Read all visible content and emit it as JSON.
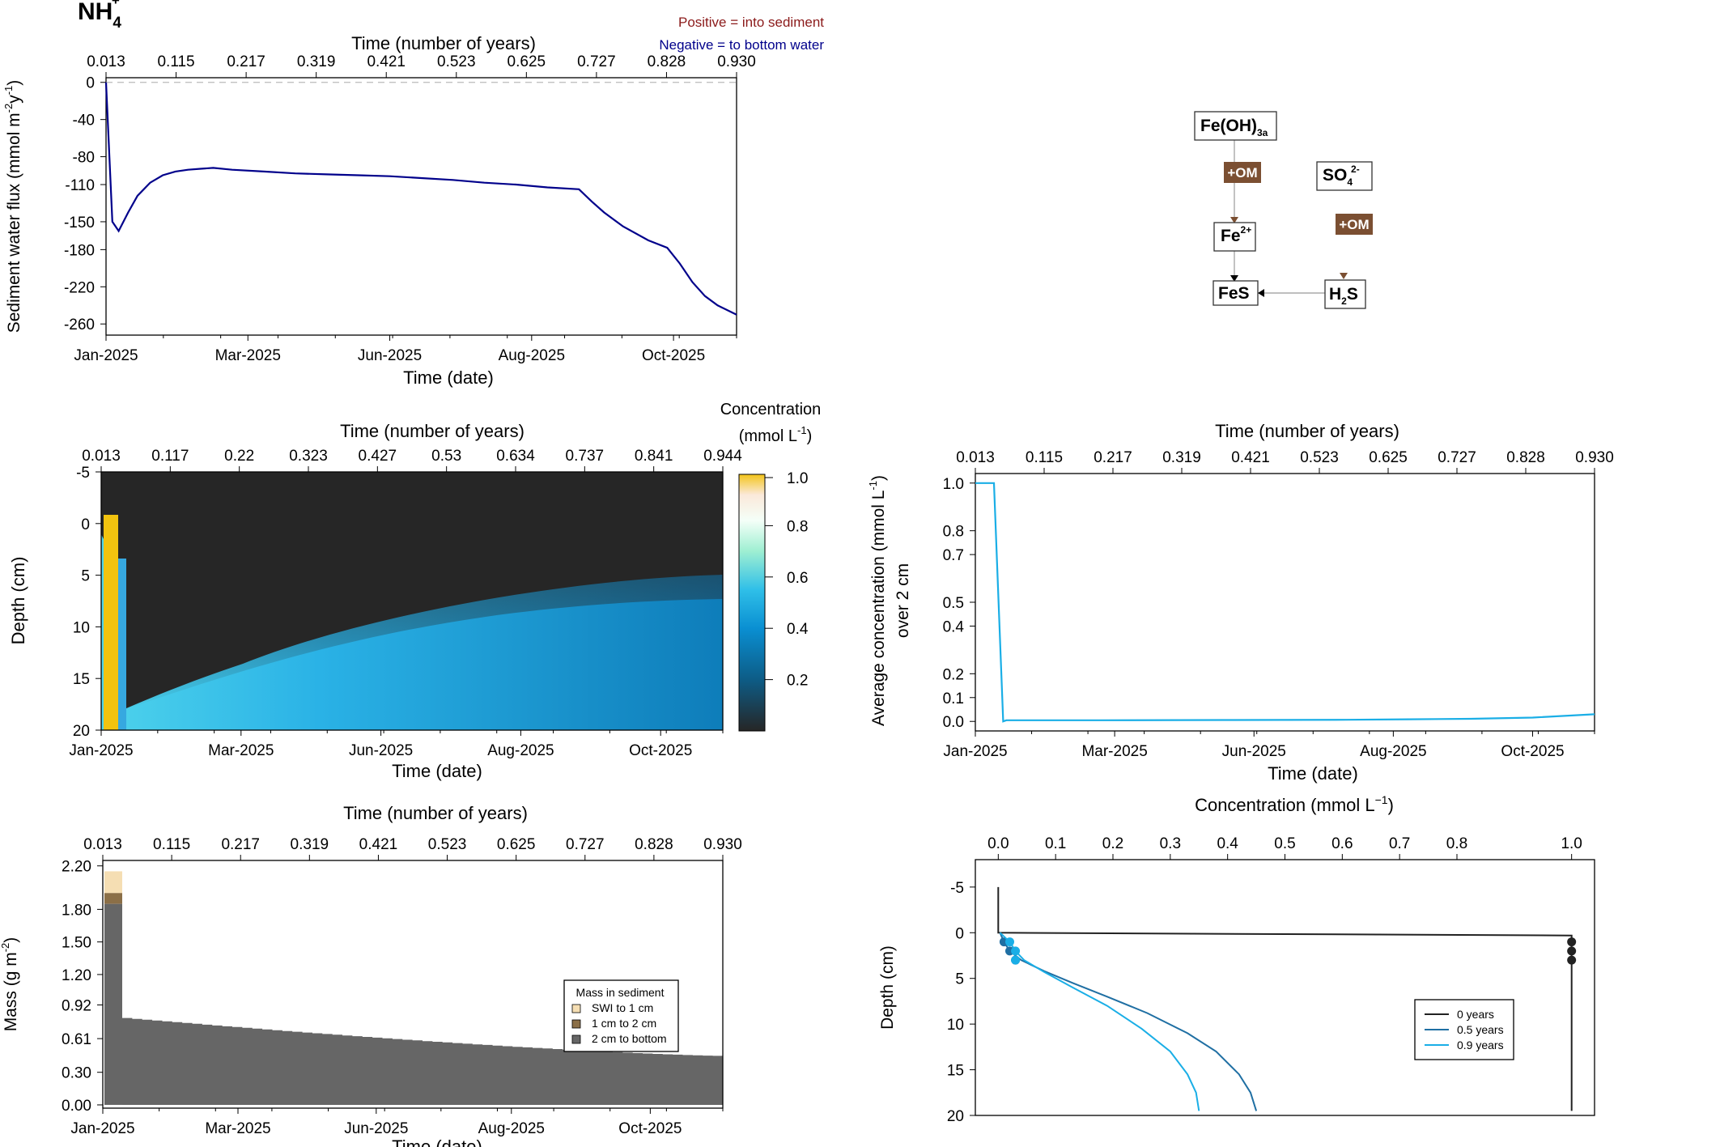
{
  "page": {
    "title": "NH",
    "title_sub": "4",
    "title_sup": "+"
  },
  "flux_legend": {
    "positive": "Positive = into sediment",
    "negative": "Negative = to bottom water",
    "positive_color": "#8B1A1A",
    "negative_color": "#00008B"
  },
  "colors": {
    "flux_line": "#00008B",
    "avg_line": "#1AAEE6",
    "profile_0": "#222222",
    "profile_05": "#1F6FA3",
    "profile_09": "#1AAEE6",
    "mass_swi": "#F5DEB3",
    "mass_1_2": "#8B6F47",
    "mass_2_bottom": "#666666",
    "om_box": "#7B4F32",
    "gold_strip": "#F2C30F"
  },
  "chart_data": [
    {
      "id": "flux",
      "type": "line",
      "top_axis_title": "Time (number of years)",
      "top_ticks": [
        "0.013",
        "0.115",
        "0.217",
        "0.319",
        "0.421",
        "0.523",
        "0.625",
        "0.727",
        "0.828",
        "0.930"
      ],
      "xlabel": "Time (date)",
      "x_ticks": [
        "Jan-2025",
        "Mar-2025",
        "Jun-2025",
        "Aug-2025",
        "Oct-2025"
      ],
      "ylabel": "Sediment water flux (mmol m",
      "ylabel_sup1": "-2",
      "ylabel_mid": "y",
      "ylabel_sup2": "-1",
      "ylabel_end": ")",
      "y_ticks": [
        "0",
        "-40",
        "-80",
        "-110",
        "-150",
        "-180",
        "-220",
        "-260"
      ],
      "y_tick_values": [
        0,
        -40,
        -80,
        -110,
        -150,
        -180,
        -220,
        -260
      ],
      "ylim": [
        -272,
        5
      ],
      "xlim": [
        0.0,
        1.0
      ],
      "x": [
        0.0,
        0.01,
        0.02,
        0.035,
        0.05,
        0.07,
        0.09,
        0.11,
        0.13,
        0.15,
        0.17,
        0.2,
        0.25,
        0.3,
        0.35,
        0.4,
        0.45,
        0.5,
        0.55,
        0.6,
        0.65,
        0.7,
        0.75,
        0.77,
        0.79,
        0.82,
        0.86,
        0.89,
        0.91,
        0.93,
        0.95,
        0.97,
        1.0
      ],
      "y": [
        0,
        -150,
        -160,
        -140,
        -122,
        -108,
        -100,
        -96,
        -94,
        -93,
        -92,
        -94,
        -96,
        -98,
        -99,
        -100,
        -101,
        -103,
        -105,
        -108,
        -110,
        -113,
        -115,
        -128,
        -140,
        -155,
        -170,
        -178,
        -195,
        -215,
        -230,
        -240,
        -250
      ],
      "reference_line": 0
    },
    {
      "id": "heatmap",
      "type": "heatmap",
      "top_axis_title": "Time (number of years)",
      "top_ticks": [
        "0.013",
        "0.117",
        "0.22",
        "0.323",
        "0.427",
        "0.53",
        "0.634",
        "0.737",
        "0.841",
        "0.944"
      ],
      "xlabel": "Time (date)",
      "x_ticks": [
        "Jan-2025",
        "Mar-2025",
        "Jun-2025",
        "Aug-2025",
        "Oct-2025"
      ],
      "ylabel": "Depth (cm)",
      "y_ticks": [
        "-5",
        "0",
        "5",
        "10",
        "15",
        "20"
      ],
      "y_tick_values": [
        -5,
        0,
        5,
        10,
        15,
        20
      ],
      "ylim": [
        -5,
        20
      ],
      "colorbar_title": "Concentration",
      "colorbar_unit_pre": "(mmol L",
      "colorbar_unit_sup": "-1",
      "colorbar_unit_post": ")",
      "colorbar_ticks": [
        "0.2",
        "0.4",
        "0.6",
        "0.8",
        "1.0"
      ],
      "colorbar_tick_values": [
        0.2,
        0.4,
        0.6,
        0.8,
        1.0
      ],
      "value_range": [
        0.0,
        1.0
      ]
    },
    {
      "id": "average",
      "type": "line",
      "top_axis_title": "Time (number of years)",
      "top_ticks": [
        "0.013",
        "0.115",
        "0.217",
        "0.319",
        "0.421",
        "0.523",
        "0.625",
        "0.727",
        "0.828",
        "0.930"
      ],
      "xlabel": "Time (date)",
      "x_ticks": [
        "Jan-2025",
        "Mar-2025",
        "Jun-2025",
        "Aug-2025",
        "Oct-2025"
      ],
      "ylabel": "Average concentration (mmol L",
      "ylabel_sup": "-1",
      "ylabel_end": ")",
      "ylabel2": "over 2 cm",
      "y_ticks": [
        "0.0",
        "0.1",
        "0.2",
        "0.4",
        "0.5",
        "0.7",
        "0.8",
        "1.0"
      ],
      "y_tick_values": [
        0.0,
        0.1,
        0.2,
        0.4,
        0.5,
        0.7,
        0.8,
        1.0
      ],
      "ylim": [
        -0.04,
        1.04
      ],
      "xlim": [
        0.0,
        1.0
      ],
      "x": [
        0.0,
        0.03,
        0.045,
        0.05,
        0.2,
        0.4,
        0.6,
        0.7,
        0.8,
        0.9,
        1.0
      ],
      "y": [
        1.0,
        1.0,
        0.0,
        0.005,
        0.005,
        0.006,
        0.007,
        0.009,
        0.011,
        0.016,
        0.03
      ]
    },
    {
      "id": "mass",
      "type": "bar",
      "top_axis_title": "Time (number of years)",
      "top_ticks": [
        "0.013",
        "0.115",
        "0.217",
        "0.319",
        "0.421",
        "0.523",
        "0.625",
        "0.727",
        "0.828",
        "0.930"
      ],
      "xlabel": "Time (date)",
      "x_ticks": [
        "Jan-2025",
        "Mar-2025",
        "Jun-2025",
        "Aug-2025",
        "Oct-2025"
      ],
      "ylabel": "Mass (g m",
      "ylabel_sup": "-2",
      "ylabel_end": ")",
      "y_ticks": [
        "0.00",
        "0.30",
        "0.61",
        "0.92",
        "1.20",
        "1.50",
        "1.80",
        "2.20"
      ],
      "y_tick_values": [
        0.0,
        0.3,
        0.61,
        0.92,
        1.2,
        1.5,
        1.8,
        2.2
      ],
      "ylim": [
        -0.03,
        2.25
      ],
      "legend_title": "Mass in sediment",
      "legend": [
        "SWI to 1 cm",
        "1 cm to 2 cm",
        "2 cm to bottom"
      ],
      "initial_bar": {
        "total": 2.15,
        "lower": 1.85,
        "middle": 1.95
      },
      "after_drop": 0.8,
      "final": 0.45
    },
    {
      "id": "profile",
      "type": "line",
      "top_axis_title": "Concentration (mmol L",
      "top_axis_sup": "−1",
      "top_axis_end": ")",
      "x_ticks": [
        "0.0",
        "0.1",
        "0.2",
        "0.3",
        "0.4",
        "0.5",
        "0.6",
        "0.7",
        "0.8",
        "1.0"
      ],
      "x_tick_values": [
        0.0,
        0.1,
        0.2,
        0.3,
        0.4,
        0.5,
        0.6,
        0.7,
        0.8,
        1.0
      ],
      "xlim": [
        -0.04,
        1.04
      ],
      "ylabel": "Depth (cm)",
      "y_ticks": [
        "-5",
        "0",
        "5",
        "10",
        "15",
        "20"
      ],
      "y_tick_values": [
        -5,
        0,
        5,
        10,
        15,
        20
      ],
      "ylim": [
        -8,
        20
      ],
      "legend": [
        "0 years",
        "0.5 years",
        "0.9 years"
      ],
      "series": [
        {
          "name": "0 years",
          "x": [
            0.0,
            0.0,
            1.0,
            1.0
          ],
          "y": [
            -5,
            0,
            0.3,
            19.5
          ],
          "points_x": [
            1.0,
            1.0,
            1.0
          ],
          "points_y": [
            1,
            2,
            3
          ]
        },
        {
          "name": "0.5 years",
          "x": [
            0.003,
            0.01,
            0.02,
            0.04,
            0.08,
            0.13,
            0.19,
            0.26,
            0.33,
            0.38,
            0.42,
            0.44,
            0.45
          ],
          "y": [
            0,
            1,
            2,
            3,
            4.2,
            5.5,
            7,
            8.8,
            11,
            13,
            15.5,
            17.5,
            19.5
          ],
          "points_x": [
            0.01,
            0.02,
            0.03
          ],
          "points_y": [
            1,
            2,
            3
          ]
        },
        {
          "name": "0.9 years",
          "x": [
            0.003,
            0.02,
            0.03,
            0.045,
            0.08,
            0.13,
            0.19,
            0.25,
            0.3,
            0.33,
            0.345,
            0.35
          ],
          "y": [
            0,
            1,
            2,
            3,
            4.3,
            6,
            8,
            10.5,
            13,
            15.5,
            17.5,
            19.5
          ],
          "points_x": [
            0.02,
            0.03,
            0.03
          ],
          "points_y": [
            1,
            2,
            3
          ]
        }
      ]
    }
  ],
  "diagram": {
    "nodes": [
      {
        "id": "feoh3a",
        "label": "Fe(OH)",
        "sub": "3a"
      },
      {
        "id": "so4",
        "label": "SO",
        "sub": "4",
        "sup": "2-"
      },
      {
        "id": "fe2",
        "label": "Fe",
        "sup": "2+"
      },
      {
        "id": "feS",
        "label": "FeS"
      },
      {
        "id": "h2s",
        "label": "H",
        "sub": "2",
        "label_end": "S"
      }
    ],
    "om_labels": [
      "+OM",
      "+OM"
    ]
  }
}
